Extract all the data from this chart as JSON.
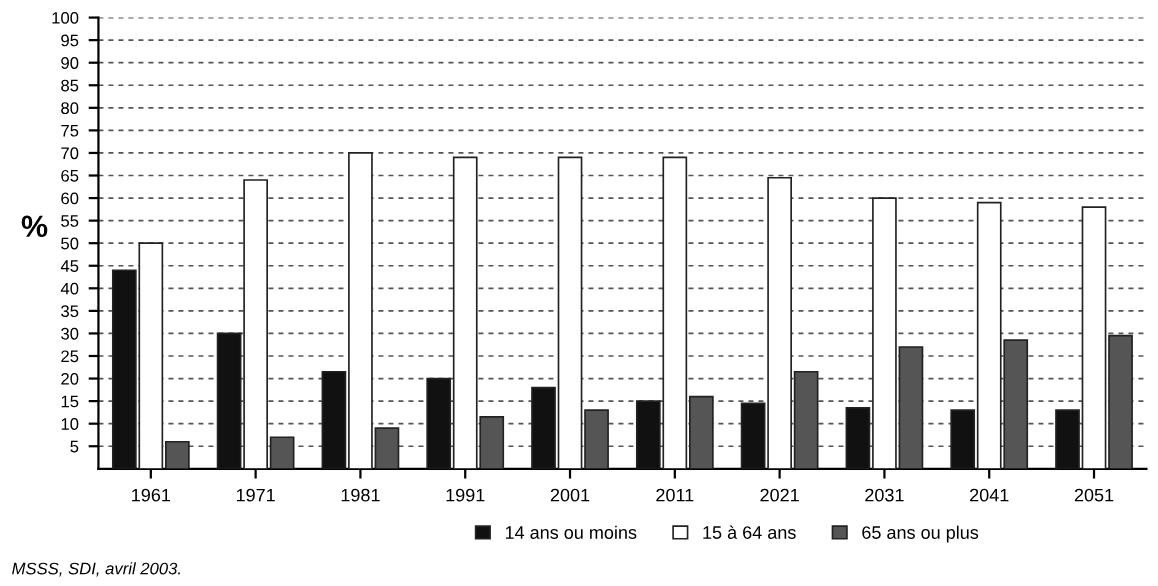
{
  "chart_data": {
    "type": "bar",
    "ylabel": "%",
    "categories": [
      "1961",
      "1971",
      "1981",
      "1991",
      "2001",
      "2011",
      "2021",
      "2031",
      "2041",
      "2051"
    ],
    "series": [
      {
        "name": "14 ans ou moins",
        "color": "#111111",
        "values": [
          44,
          30,
          21.5,
          20,
          18,
          15,
          14.5,
          13.5,
          13,
          13
        ]
      },
      {
        "name": "15 à 64 ans",
        "color": "#ffffff",
        "values": [
          50,
          64,
          70,
          69,
          69,
          69,
          64.5,
          60,
          59,
          58
        ]
      },
      {
        "name": "65 ans ou plus",
        "color": "#555555",
        "values": [
          6,
          7,
          9,
          11.5,
          13,
          16,
          21.5,
          27,
          28.5,
          29.5
        ]
      }
    ],
    "ylim": [
      0,
      100
    ],
    "yticks": [
      5,
      10,
      15,
      20,
      25,
      30,
      35,
      40,
      45,
      50,
      55,
      60,
      65,
      70,
      75,
      80,
      85,
      90,
      95,
      100
    ],
    "grid": "y",
    "legend": "bottom",
    "annotations": [
      "MSSS, SDI, avril 2003."
    ]
  }
}
